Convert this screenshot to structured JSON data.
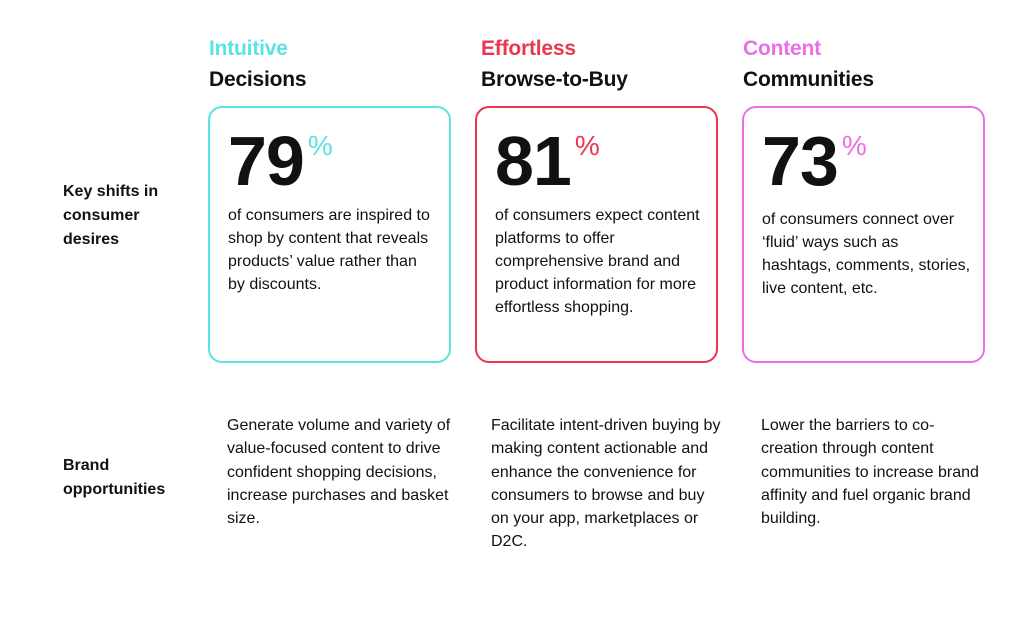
{
  "row_labels": {
    "key_shifts": "Key shifts in consumer desires",
    "brand_opportunities": "Brand opportunities"
  },
  "columns": [
    {
      "accent": "Intuitive",
      "title": "Decisions",
      "color": "#5ae3e3",
      "stat_value": "79",
      "stat_unit": "%",
      "description": "of consumers are inspired to shop by content that reveals products’ value rather than by discounts.",
      "opportunity": "Generate volume and variety of value-focused content to drive confident shopping decisions, increase purchases and basket size."
    },
    {
      "accent": "Effortless",
      "title": "Browse-to-Buy",
      "color": "#e8374f",
      "stat_value": "81",
      "stat_unit": "%",
      "description": "of consumers expect content platforms to offer comprehensive brand and product information for more effortless shopping.",
      "opportunity": "Facilitate intent-driven buying by making content actionable and enhance the convenience for consumers to browse and buy on your app, marketplaces or D2C."
    },
    {
      "accent": "Content",
      "title": "Communities",
      "color": "#ea6ee8",
      "stat_value": "73",
      "stat_unit": "%",
      "description": "of consumers connect over ‘fluid’ ways such as hashtags, comments, stories, live content, etc.",
      "opportunity": "Lower the barriers to co-creation through content communities to increase brand affinity and fuel organic brand building."
    }
  ]
}
